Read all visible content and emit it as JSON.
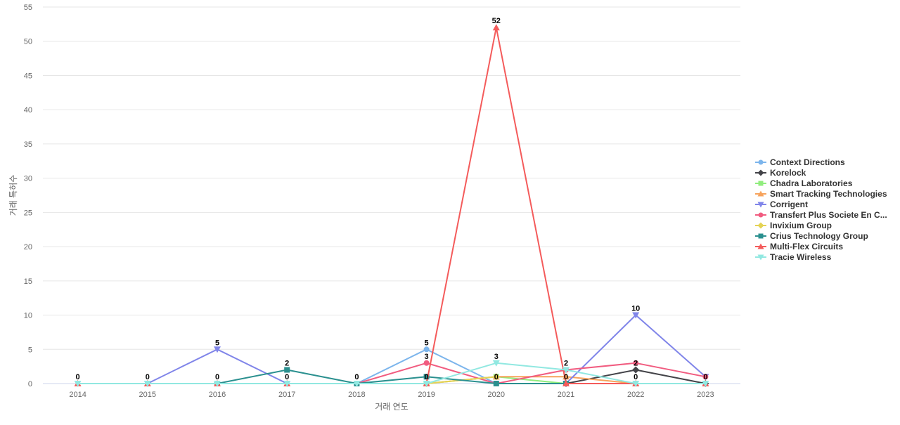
{
  "chart_data": {
    "type": "line",
    "title": "",
    "xlabel": "거래 연도",
    "ylabel": "거래 특허수",
    "ylim": [
      0,
      55
    ],
    "y_ticks": [
      0,
      5,
      10,
      15,
      20,
      25,
      30,
      35,
      40,
      45,
      50,
      55
    ],
    "grid": "horizontal",
    "legend_position": "right",
    "x": [
      "2014",
      "2015",
      "2016",
      "2017",
      "2018",
      "2019",
      "2020",
      "2021",
      "2022",
      "2023"
    ],
    "series": [
      {
        "name": "Context Directions",
        "color": "#7cb5ec",
        "marker": "circle",
        "values": [
          null,
          null,
          null,
          null,
          0,
          5,
          0,
          null,
          null,
          null
        ]
      },
      {
        "name": "Korelock",
        "color": "#434348",
        "marker": "diamond",
        "values": [
          null,
          null,
          null,
          null,
          null,
          null,
          null,
          0,
          2,
          0
        ]
      },
      {
        "name": "Chadra Laboratories",
        "color": "#90ed7d",
        "marker": "square",
        "values": [
          null,
          null,
          null,
          null,
          null,
          0,
          1,
          0,
          null,
          null
        ]
      },
      {
        "name": "Smart Tracking Technologies",
        "color": "#f7a35c",
        "marker": "triangle",
        "values": [
          null,
          null,
          null,
          null,
          null,
          0,
          1,
          1,
          0,
          null
        ]
      },
      {
        "name": "Corrigent",
        "color": "#8085e9",
        "marker": "triangle-down",
        "values": [
          null,
          0,
          5,
          0,
          null,
          null,
          null,
          0,
          10,
          1
        ]
      },
      {
        "name": "Transfert Plus Societe En C...",
        "color": "#f15c80",
        "marker": "circle",
        "values": [
          null,
          null,
          null,
          null,
          0,
          3,
          0,
          2,
          3,
          1
        ]
      },
      {
        "name": "Invixium Group",
        "color": "#e4d354",
        "marker": "diamond",
        "values": [
          null,
          null,
          null,
          null,
          null,
          0,
          1,
          null,
          null,
          null
        ]
      },
      {
        "name": "Crius Technology Group",
        "color": "#2b908f",
        "marker": "square",
        "values": [
          null,
          null,
          0,
          2,
          0,
          1,
          0,
          0,
          null,
          null
        ]
      },
      {
        "name": "Multi-Flex Circuits",
        "color": "#f45b5b",
        "marker": "triangle",
        "values": [
          0,
          0,
          0,
          0,
          null,
          0,
          52,
          0,
          0,
          0
        ]
      },
      {
        "name": "Tracie Wireless",
        "color": "#91e8e1",
        "marker": "triangle-down",
        "values": [
          0,
          0,
          0,
          0,
          0,
          0,
          3,
          2,
          0,
          0
        ]
      }
    ],
    "data_labels": [
      {
        "x": "2014",
        "text": "0",
        "value": 0
      },
      {
        "x": "2015",
        "text": "0",
        "value": 0
      },
      {
        "x": "2016",
        "text": "5",
        "value": 5
      },
      {
        "x": "2016",
        "text": "0",
        "value": 0
      },
      {
        "x": "2017",
        "text": "2",
        "value": 2
      },
      {
        "x": "2017",
        "text": "0",
        "value": 0
      },
      {
        "x": "2018",
        "text": "0",
        "value": 0
      },
      {
        "x": "2019",
        "text": "5",
        "value": 5
      },
      {
        "x": "2019",
        "text": "3",
        "value": 3
      },
      {
        "x": "2019",
        "text": "0",
        "value": 0
      },
      {
        "x": "2020",
        "text": "52",
        "value": 52
      },
      {
        "x": "2020",
        "text": "3",
        "value": 3
      },
      {
        "x": "2020",
        "text": "0",
        "value": 0
      },
      {
        "x": "2021",
        "text": "2",
        "value": 2
      },
      {
        "x": "2021",
        "text": "0",
        "value": 0
      },
      {
        "x": "2022",
        "text": "10",
        "value": 10
      },
      {
        "x": "2022",
        "text": "2",
        "value": 2
      },
      {
        "x": "2022",
        "text": "0",
        "value": 0
      },
      {
        "x": "2023",
        "text": "0",
        "value": 0
      }
    ]
  }
}
